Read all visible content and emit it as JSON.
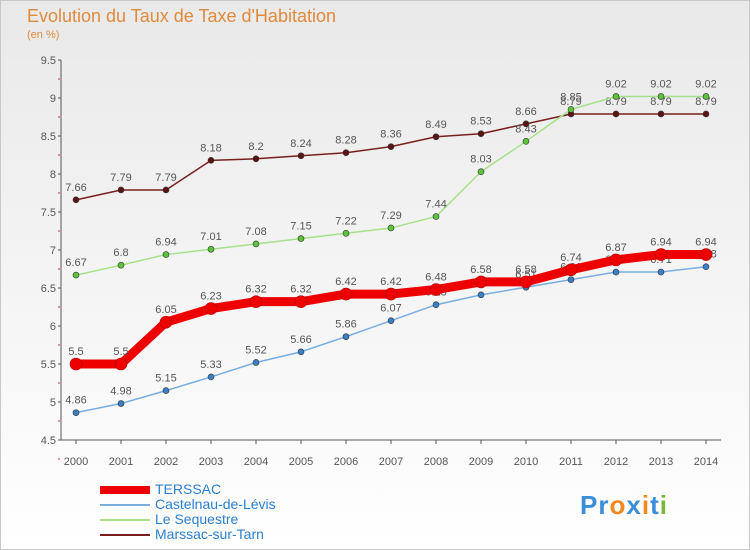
{
  "chart_data": {
    "type": "line",
    "title": "Evolution du Taux de Taxe d'Habitation",
    "subtitle": "(en %)",
    "x": [
      2000,
      2001,
      2002,
      2003,
      2004,
      2005,
      2006,
      2007,
      2008,
      2009,
      2010,
      2011,
      2012,
      2013,
      2014
    ],
    "ylim": [
      4.5,
      9.5
    ],
    "yticks": [
      4.5,
      5,
      5.5,
      6,
      6.5,
      7,
      7.5,
      8,
      8.5,
      9,
      9.5
    ],
    "grid": false,
    "legend_position": "bottom-left",
    "series": [
      {
        "name": "Marssac-sur-Tarn",
        "color": "#7a1f1f",
        "marker": "#5a1414",
        "values": [
          7.66,
          7.79,
          7.79,
          8.18,
          8.2,
          8.24,
          8.28,
          8.36,
          8.49,
          8.53,
          8.66,
          8.79,
          8.79,
          8.79,
          8.79
        ]
      },
      {
        "name": "Le Sequestre",
        "color": "#a8e08a",
        "marker": "#5cc43a",
        "values": [
          6.67,
          6.8,
          6.94,
          7.01,
          7.08,
          7.15,
          7.22,
          7.29,
          7.44,
          8.03,
          8.43,
          8.85,
          9.02,
          9.02,
          9.02
        ]
      },
      {
        "name": "Castelnau-de-Lévis",
        "color": "#7aaee0",
        "marker": "#3a80c8",
        "values": [
          4.86,
          4.98,
          5.15,
          5.33,
          5.52,
          5.66,
          5.86,
          6.07,
          6.28,
          6.41,
          6.51,
          6.61,
          6.71,
          6.71,
          6.78
        ]
      },
      {
        "name": "TERSSAC",
        "color": "#ee0000",
        "marker": "#ee0000",
        "values": [
          5.5,
          5.5,
          6.05,
          6.23,
          6.32,
          6.32,
          6.42,
          6.42,
          6.48,
          6.58,
          6.58,
          6.74,
          6.87,
          6.94,
          6.94
        ]
      }
    ]
  },
  "legend": [
    {
      "label": "TERSSAC",
      "color": "#ee0000"
    },
    {
      "label": "Castelnau-de-Lévis",
      "color": "#7aaee0"
    },
    {
      "label": "Le Sequestre",
      "color": "#a8e08a"
    },
    {
      "label": "Marssac-sur-Tarn",
      "color": "#7a1f1f"
    }
  ],
  "logo": {
    "letters": [
      "P",
      "r",
      "o",
      "x",
      "i",
      "t",
      "i"
    ],
    "colors": [
      "#3a8fd8",
      "#3a8fd8",
      "#f08a20",
      "#3a8fd8",
      "#f08a20",
      "#3a8fd8",
      "#7ab83a"
    ]
  }
}
